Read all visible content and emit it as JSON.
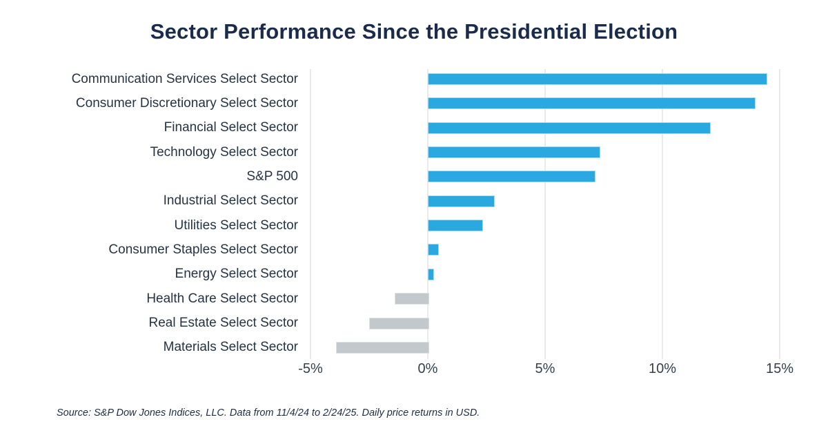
{
  "title": "Sector Performance Since the Presidential Election",
  "source": "Source: S&P Dow Jones Indices, LLC. Data from 11/4/24 to 2/24/25. Daily price returns in USD.",
  "colors": {
    "positive_bar": "#29a9e0",
    "negative_bar": "#c2c8cc",
    "gridline": "#e8eaeb",
    "title_text": "#1a2b4c",
    "label_text": "#253343"
  },
  "chart_data": {
    "type": "bar",
    "orientation": "horizontal",
    "title": "Sector Performance Since the Presidential Election",
    "xlabel": "",
    "ylabel": "",
    "xlim": [
      -5,
      15
    ],
    "grid": true,
    "x_tick_labels": [
      "-5%",
      "0%",
      "5%",
      "10%",
      "15%"
    ],
    "x_tick_values": [
      -5,
      0,
      5,
      10,
      15
    ],
    "categories": [
      "Communication Services Select Sector",
      "Consumer Discretionary Select Sector",
      "Financial Select Sector",
      "Technology Select Sector",
      "S&P 500",
      "Industrial Select Sector",
      "Utilities Select Sector",
      "Consumer Staples Select Sector",
      "Energy Select Sector",
      "Health Care Select Sector",
      "Real Estate Select Sector",
      "Materials Select Sector"
    ],
    "values": [
      14.4,
      13.9,
      12.0,
      7.3,
      7.1,
      2.8,
      2.3,
      0.4,
      0.2,
      -1.4,
      -2.5,
      -3.9
    ],
    "units": "percent",
    "value_note": "daily price returns in USD, 11/4/24 to 2/24/25"
  }
}
